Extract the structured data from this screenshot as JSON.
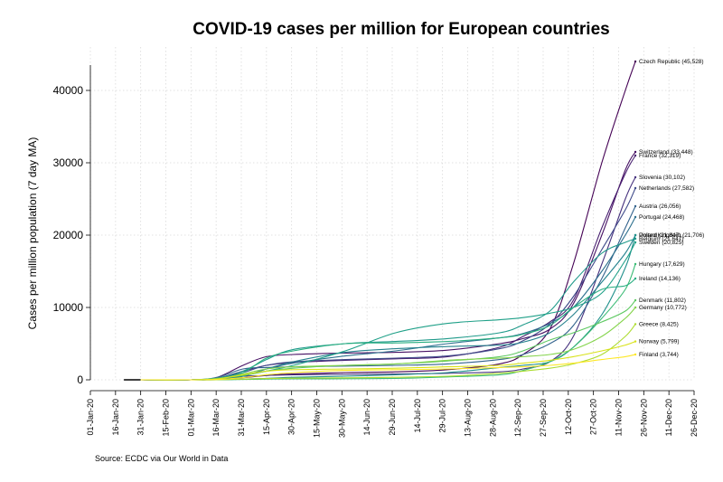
{
  "chart_data": {
    "type": "line",
    "title": "COVID-19 cases per million for European countries",
    "ylabel": "Cases per million population (7 day MA)",
    "xlabel": "",
    "source": "Source: ECDC via Our World in Data",
    "ylim": [
      0,
      46000
    ],
    "yticks": [
      0,
      10000,
      20000,
      30000,
      40000
    ],
    "xlim": [
      "2020-01-01",
      "2020-12-26"
    ],
    "xticks": [
      "01-Jan-20",
      "16-Jan-20",
      "31-Jan-20",
      "15-Feb-20",
      "01-Mar-20",
      "16-Mar-20",
      "31-Mar-20",
      "15-Apr-20",
      "30-Apr-20",
      "15-May-20",
      "30-May-20",
      "14-Jun-20",
      "29-Jun-20",
      "14-Jul-20",
      "29-Jul-20",
      "13-Aug-20",
      "28-Aug-20",
      "12-Sep-20",
      "27-Sep-20",
      "12-Oct-20",
      "27-Oct-20",
      "11-Nov-20",
      "26-Nov-20",
      "11-Dec-20",
      "26-Dec-20"
    ],
    "grid": true,
    "legend": "none",
    "x": [
      "2020-01-21",
      "2020-01-31",
      "2020-03-01",
      "2020-03-16",
      "2020-04-01",
      "2020-04-15",
      "2020-05-01",
      "2020-06-01",
      "2020-07-01",
      "2020-08-01",
      "2020-09-01",
      "2020-09-15",
      "2020-10-01",
      "2020-10-15",
      "2020-11-01",
      "2020-11-15",
      "2020-11-21"
    ],
    "series": [
      {
        "name": "Czech Republic (45,528)",
        "color": "#440154",
        "values": [
          null,
          0,
          0,
          50,
          300,
          600,
          800,
          1000,
          1100,
          1400,
          2200,
          3500,
          7000,
          16000,
          30000,
          40000,
          44000
        ]
      },
      {
        "name": "Switzerland (33,448)",
        "color": "#471164",
        "values": [
          null,
          0,
          0,
          300,
          2000,
          3200,
          3500,
          3700,
          3800,
          4100,
          5000,
          5700,
          7000,
          10500,
          20000,
          29000,
          31500
        ]
      },
      {
        "name": "France (32,319)",
        "color": "#481f70",
        "values": [
          null,
          0,
          0,
          200,
          1200,
          2000,
          2400,
          2700,
          2900,
          3200,
          4500,
          6000,
          8000,
          11000,
          21000,
          28500,
          31000
        ]
      },
      {
        "name": "Slovenia (30,102)",
        "color": "#46327e",
        "values": [
          null,
          0,
          0,
          100,
          500,
          600,
          700,
          750,
          800,
          900,
          1100,
          1500,
          2500,
          6000,
          16000,
          25000,
          28000
        ]
      },
      {
        "name": "Netherlands (27,582)",
        "color": "#3e4989",
        "values": [
          null,
          0,
          0,
          200,
          1000,
          2000,
          2500,
          2800,
          3000,
          3300,
          4300,
          5400,
          7700,
          11500,
          18000,
          23500,
          26500
        ]
      },
      {
        "name": "Austria (26,056)",
        "color": "#33638d",
        "values": [
          null,
          0,
          0,
          300,
          1500,
          1700,
          1800,
          1900,
          2000,
          2200,
          2800,
          3500,
          5000,
          7500,
          14000,
          21000,
          24000
        ]
      },
      {
        "name": "Portugal (24,468)",
        "color": "#2d708e",
        "values": [
          null,
          0,
          0,
          50,
          500,
          1500,
          2300,
          3300,
          4000,
          5000,
          5800,
          6400,
          7800,
          10000,
          15000,
          20000,
          22500
        ]
      },
      {
        "name": "United Kingdom (21,706)",
        "color": "#26828e",
        "values": [
          null,
          0,
          0,
          50,
          500,
          1500,
          2500,
          3800,
          4300,
          4600,
          4800,
          5200,
          6500,
          9000,
          13500,
          17500,
          20000
        ]
      },
      {
        "name": "Belgium (21,647)",
        "color": "#1f9a8a",
        "values": [
          null,
          0,
          0,
          200,
          1200,
          2800,
          4200,
          5000,
          5300,
          5700,
          6500,
          7600,
          9500,
          13500,
          17500,
          19000,
          19500
        ]
      },
      {
        "name": "Poland (21,847)",
        "color": "#21918c",
        "values": [
          null,
          0,
          0,
          10,
          100,
          200,
          350,
          500,
          700,
          1000,
          1700,
          2000,
          2500,
          4500,
          9000,
          15500,
          20000
        ]
      },
      {
        "name": "Sweden (20,825)",
        "color": "#1fa088",
        "values": [
          null,
          0,
          0,
          100,
          600,
          1200,
          2000,
          4000,
          6500,
          7800,
          8300,
          8600,
          9200,
          10000,
          12000,
          16500,
          19000
        ]
      },
      {
        "name": "Hungary (17,629)",
        "color": "#3bbb75",
        "values": [
          null,
          0,
          0,
          5,
          50,
          100,
          120,
          150,
          200,
          400,
          700,
          1300,
          2500,
          4500,
          8500,
          12500,
          16000
        ]
      },
      {
        "name": "Ireland (14,136)",
        "color": "#28ae80",
        "values": [
          null,
          0,
          0,
          100,
          1000,
          3000,
          4000,
          5000,
          5100,
          5300,
          5800,
          6300,
          7500,
          10000,
          12500,
          13000,
          14000
        ]
      },
      {
        "name": "Denmark (11,802)",
        "color": "#5ec962",
        "values": [
          null,
          0,
          0,
          200,
          600,
          1200,
          1600,
          2000,
          2200,
          2600,
          3200,
          4000,
          5500,
          6500,
          8000,
          9500,
          11000
        ]
      },
      {
        "name": "Germany (10,772)",
        "color": "#84d44b",
        "values": [
          null,
          0,
          0,
          100,
          800,
          1500,
          1800,
          2000,
          2200,
          2700,
          3000,
          3200,
          3500,
          4200,
          6000,
          8500,
          10000
        ]
      },
      {
        "name": "Greece (8,425)",
        "color": "#addc30",
        "values": [
          null,
          0,
          0,
          10,
          100,
          180,
          220,
          280,
          350,
          500,
          900,
          1200,
          1600,
          2200,
          3500,
          6000,
          7700
        ]
      },
      {
        "name": "Norway (5,799)",
        "color": "#d8e219",
        "values": [
          null,
          0,
          0,
          100,
          700,
          1200,
          1400,
          1500,
          1600,
          1800,
          2000,
          2300,
          2700,
          3200,
          4000,
          4800,
          5300
        ]
      },
      {
        "name": "Finland (3,744)",
        "color": "#fde725",
        "values": [
          null,
          0,
          0,
          50,
          300,
          700,
          1000,
          1300,
          1400,
          1500,
          1700,
          1800,
          2000,
          2300,
          2800,
          3200,
          3500
        ]
      }
    ],
    "first_case_marker": {
      "x": "2020-01-21",
      "to": "2020-01-31",
      "value": 0
    }
  }
}
